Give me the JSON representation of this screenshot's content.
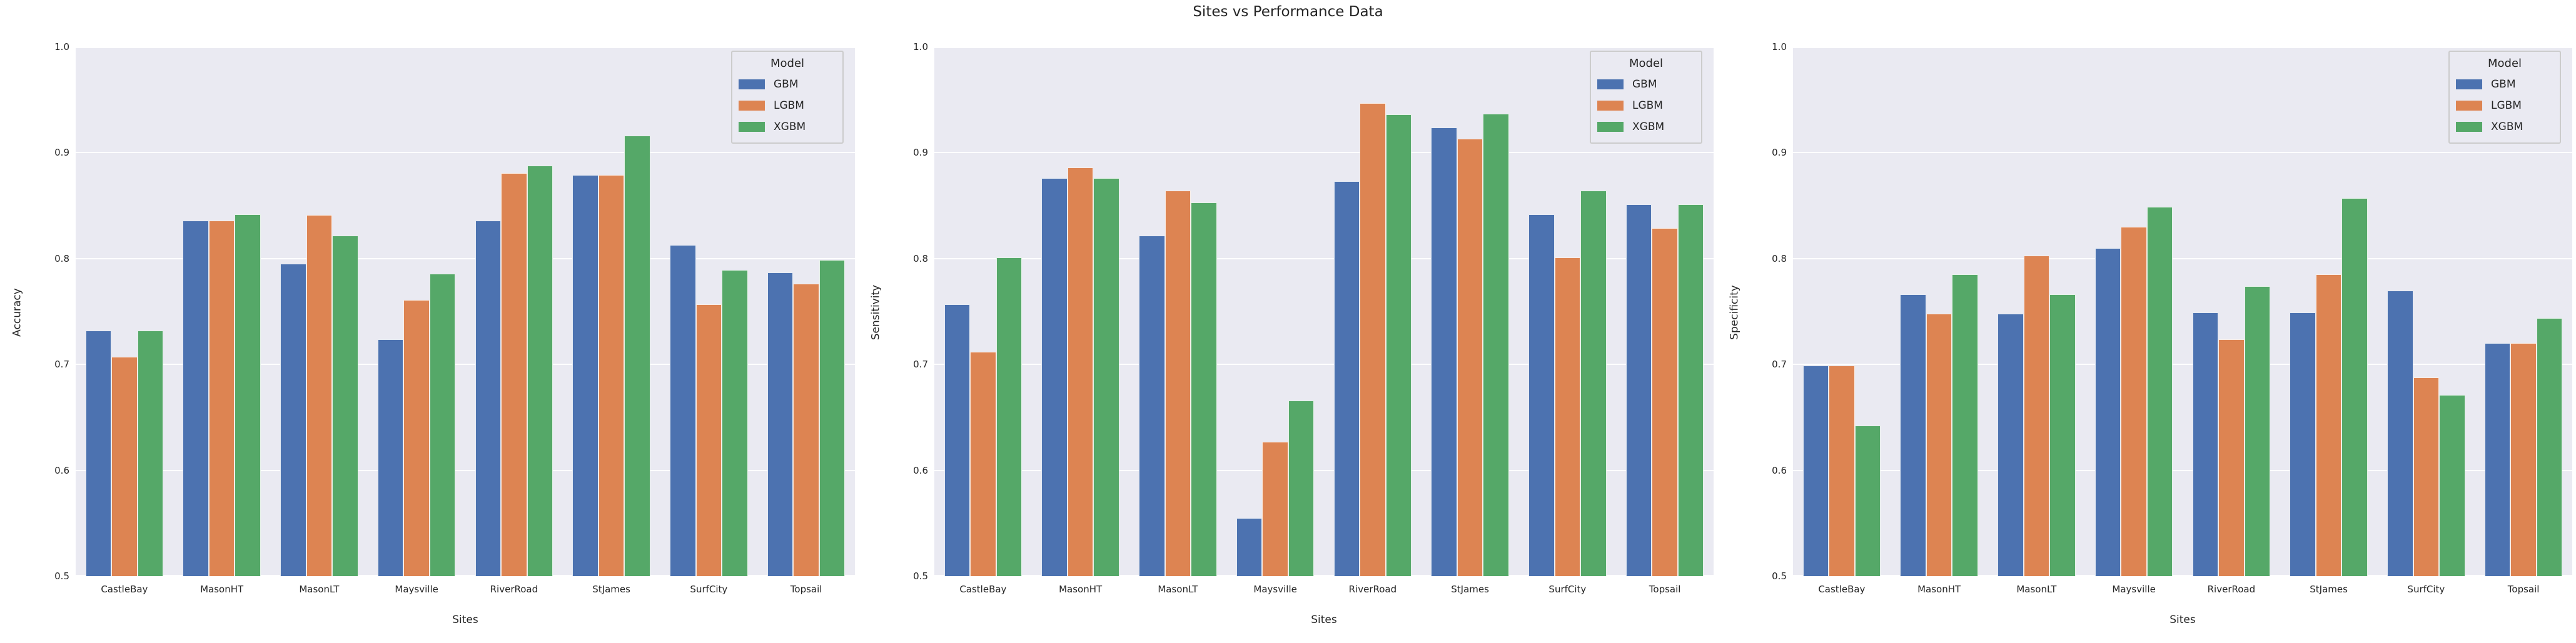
{
  "title": "Sites vs Performance Data",
  "legend": {
    "title": "Model"
  },
  "colors": {
    "GBM": "#4C72B0",
    "LGBM": "#DD8452",
    "XGBM": "#55A868",
    "plot_background": "#eaeaf2",
    "gridline": "#ffffff",
    "text": "#262626"
  },
  "axis": {
    "xlabel": "Sites",
    "yticks": [
      "1.0",
      "0.9",
      "0.8",
      "0.7",
      "0.6",
      "0.5"
    ],
    "ylim": [
      0.5,
      1.0
    ],
    "grid": true,
    "legend_position": "upper right"
  },
  "chart_data": [
    {
      "type": "bar",
      "title": "Sites vs Performance Data",
      "xlabel": "Sites",
      "ylabel": "Accuracy",
      "ylim": [
        0.5,
        1.0
      ],
      "categories": [
        "CastleBay",
        "MasonHT",
        "MasonLT",
        "Maysville",
        "RiverRoad",
        "StJames",
        "SurfCity",
        "Topsail"
      ],
      "series": [
        {
          "name": "GBM",
          "color": "#4C72B0",
          "values": [
            0.732,
            0.836,
            0.795,
            0.724,
            0.836,
            0.879,
            0.813,
            0.787
          ]
        },
        {
          "name": "LGBM",
          "color": "#DD8452",
          "values": [
            0.707,
            0.836,
            0.841,
            0.761,
            0.881,
            0.879,
            0.757,
            0.776
          ]
        },
        {
          "name": "XGBM",
          "color": "#55A868",
          "values": [
            0.732,
            0.842,
            0.822,
            0.786,
            0.888,
            0.916,
            0.789,
            0.799
          ]
        }
      ]
    },
    {
      "type": "bar",
      "title": "Sites vs Performance Data",
      "xlabel": "Sites",
      "ylabel": "Sensitivity",
      "ylim": [
        0.5,
        1.0
      ],
      "categories": [
        "CastleBay",
        "MasonHT",
        "MasonLT",
        "Maysville",
        "RiverRoad",
        "StJames",
        "SurfCity",
        "Topsail"
      ],
      "series": [
        {
          "name": "GBM",
          "color": "#4C72B0",
          "values": [
            0.757,
            0.876,
            0.822,
            0.555,
            0.873,
            0.924,
            0.842,
            0.851
          ]
        },
        {
          "name": "LGBM",
          "color": "#DD8452",
          "values": [
            0.712,
            0.886,
            0.864,
            0.627,
            0.947,
            0.913,
            0.801,
            0.829
          ]
        },
        {
          "name": "XGBM",
          "color": "#55A868",
          "values": [
            0.801,
            0.876,
            0.853,
            0.666,
            0.936,
            0.937,
            0.864,
            0.851
          ]
        }
      ]
    },
    {
      "type": "bar",
      "title": "Sites vs Performance Data",
      "xlabel": "Sites",
      "ylabel": "Specificity",
      "ylim": [
        0.5,
        1.0
      ],
      "categories": [
        "CastleBay",
        "MasonHT",
        "MasonLT",
        "Maysville",
        "RiverRoad",
        "StJames",
        "SurfCity",
        "Topsail"
      ],
      "series": [
        {
          "name": "GBM",
          "color": "#4C72B0",
          "values": [
            0.699,
            0.766,
            0.748,
            0.81,
            0.749,
            0.749,
            0.77,
            0.72
          ]
        },
        {
          "name": "LGBM",
          "color": "#DD8452",
          "values": [
            0.699,
            0.748,
            0.803,
            0.83,
            0.724,
            0.785,
            0.688,
            0.72
          ]
        },
        {
          "name": "XGBM",
          "color": "#55A868",
          "values": [
            0.642,
            0.785,
            0.766,
            0.849,
            0.774,
            0.857,
            0.671,
            0.744
          ]
        }
      ]
    }
  ]
}
